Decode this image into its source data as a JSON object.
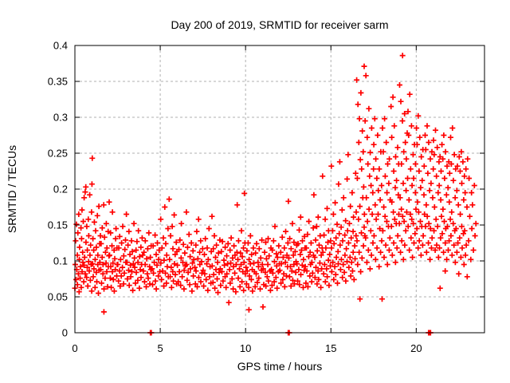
{
  "chart_data": {
    "type": "scatter",
    "title": "Day 200 of 2019, SRMTID for receiver sarm",
    "xlabel": "GPS time / hours",
    "ylabel": "SRMTID / TECUs",
    "xlim": [
      0,
      24
    ],
    "ylim": [
      0,
      0.4
    ],
    "xticks": [
      0,
      5,
      10,
      15,
      20
    ],
    "yticks": [
      0,
      0.05,
      0.1,
      0.15,
      0.2,
      0.25,
      0.3,
      0.35,
      0.4
    ],
    "grid": true,
    "legend": "none",
    "marker": "plus",
    "marker_color": "#ff0000",
    "grid_color": "#b0b0b0",
    "axis_color": "#000000",
    "background_color": "#ffffff",
    "bin_width": 0.5,
    "bins": [
      {
        "x0": 0.0,
        "ys": [
          0.062,
          0.095,
          0.128,
          0.074,
          0.151,
          0.088,
          0.108,
          0.067,
          0.139,
          0.082,
          0.165,
          0.057,
          0.102,
          0.119,
          0.076,
          0.092,
          0.146,
          0.063,
          0.131,
          0.171,
          0.085,
          0.112,
          0.098,
          0.155
        ]
      },
      {
        "x0": 0.5,
        "ys": [
          0.071,
          0.094,
          0.188,
          0.105,
          0.196,
          0.082,
          0.203,
          0.126,
          0.077,
          0.148,
          0.091,
          0.115,
          0.065,
          0.158,
          0.099,
          0.135,
          0.086,
          0.192,
          0.108,
          0.073,
          0.122,
          0.095,
          0.168,
          0.058
        ]
      },
      {
        "x0": 1.0,
        "ys": [
          0.207,
          0.096,
          0.131,
          0.078,
          0.115,
          0.089,
          0.154,
          0.063,
          0.102,
          0.142,
          0.084,
          0.119,
          0.071,
          0.163,
          0.095,
          0.108,
          0.055,
          0.176,
          0.087,
          0.124,
          0.098,
          0.135
        ]
      },
      {
        "x0": 1.5,
        "ys": [
          0.088,
          0.124,
          0.069,
          0.105,
          0.146,
          0.082,
          0.095,
          0.178,
          0.061,
          0.133,
          0.076,
          0.112,
          0.097,
          0.152,
          0.085,
          0.118,
          0.064,
          0.141,
          0.092,
          0.107
        ]
      },
      {
        "x0": 2.0,
        "ys": [
          0.182,
          0.108,
          0.076,
          0.139,
          0.092,
          0.063,
          0.121,
          0.085,
          0.168,
          0.097,
          0.074,
          0.115,
          0.058,
          0.103,
          0.088,
          0.131,
          0.145,
          0.079,
          0.118,
          0.095
        ]
      },
      {
        "x0": 2.5,
        "ys": [
          0.095,
          0.072,
          0.118,
          0.086,
          0.134,
          0.065,
          0.102,
          0.079,
          0.125,
          0.091,
          0.148,
          0.068,
          0.107,
          0.083,
          0.116,
          0.129,
          0.098
        ]
      },
      {
        "x0": 3.0,
        "ys": [
          0.165,
          0.098,
          0.075,
          0.122,
          0.087,
          0.141,
          0.066,
          0.109,
          0.094,
          0.078,
          0.128,
          0.085,
          0.113,
          0.059,
          0.096,
          0.152,
          0.104
        ]
      },
      {
        "x0": 3.5,
        "ys": [
          0.091,
          0.069,
          0.115,
          0.084,
          0.127,
          0.073,
          0.098,
          0.142,
          0.062,
          0.106,
          0.088,
          0.119,
          0.077,
          0.095,
          0.132,
          0.108
        ]
      },
      {
        "x0": 4.0,
        "ys": [
          0.086,
          0.112,
          0.071,
          0.095,
          0.128,
          0.064,
          0.103,
          0.082,
          0.117,
          0.076,
          0.139,
          0.092,
          0.068,
          0.105,
          0.088,
          0.121
        ]
      },
      {
        "x0": 4.5,
        "ys": [
          0.089,
          0.067,
          0.121,
          0.083,
          0.098,
          0.136,
          0.072,
          0.109,
          0.061,
          0.094,
          0.125,
          0.079,
          0.102,
          0.115,
          0.085
        ]
      },
      {
        "x0": 5.0,
        "ys": [
          0.158,
          0.097,
          0.074,
          0.118,
          0.086,
          0.132,
          0.065,
          0.101,
          0.175,
          0.083,
          0.124,
          0.069,
          0.108,
          0.092,
          0.145,
          0.078
        ]
      },
      {
        "x0": 5.5,
        "ys": [
          0.186,
          0.102,
          0.078,
          0.135,
          0.091,
          0.063,
          0.148,
          0.085,
          0.117,
          0.072,
          0.164,
          0.096,
          0.109,
          0.081,
          0.126,
          0.068,
          0.113
        ]
      },
      {
        "x0": 6.0,
        "ys": [
          0.094,
          0.071,
          0.116,
          0.085,
          0.129,
          0.066,
          0.104,
          0.152,
          0.078,
          0.098,
          0.123,
          0.061,
          0.087,
          0.111,
          0.093
        ]
      },
      {
        "x0": 6.5,
        "ys": [
          0.168,
          0.095,
          0.073,
          0.119,
          0.084,
          0.137,
          0.067,
          0.106,
          0.089,
          0.125,
          0.058,
          0.097,
          0.114,
          0.079,
          0.102
        ]
      },
      {
        "x0": 7.0,
        "ys": [
          0.091,
          0.068,
          0.122,
          0.086,
          0.141,
          0.064,
          0.103,
          0.158,
          0.077,
          0.112,
          0.095,
          0.128,
          0.071,
          0.099,
          0.083,
          0.117
        ]
      },
      {
        "x0": 7.5,
        "ys": [
          0.087,
          0.065,
          0.109,
          0.082,
          0.131,
          0.074,
          0.096,
          0.118,
          0.059,
          0.102,
          0.145,
          0.078,
          0.092,
          0.069,
          0.113
        ]
      },
      {
        "x0": 8.0,
        "ys": [
          0.162,
          0.093,
          0.07,
          0.117,
          0.081,
          0.135,
          0.062,
          0.105,
          0.088,
          0.122,
          0.075,
          0.098,
          0.056,
          0.111,
          0.084,
          0.129
        ]
      },
      {
        "x0": 8.5,
        "ys": [
          0.089,
          0.066,
          0.113,
          0.085,
          0.127,
          0.072,
          0.101,
          0.094,
          0.078,
          0.119,
          0.063,
          0.107,
          0.082,
          0.096,
          0.124
        ]
      },
      {
        "x0": 9.0,
        "ys": [
          0.042,
          0.088,
          0.115,
          0.069,
          0.097,
          0.132,
          0.075,
          0.104,
          0.061,
          0.092,
          0.121,
          0.083,
          0.108,
          0.057,
          0.095,
          0.112
        ]
      },
      {
        "x0": 9.5,
        "ys": [
          0.178,
          0.102,
          0.076,
          0.128,
          0.089,
          0.064,
          0.111,
          0.095,
          0.142,
          0.071,
          0.106,
          0.085,
          0.118,
          0.059,
          0.098,
          0.125,
          0.082
        ]
      },
      {
        "x0": 10.0,
        "ys": [
          0.091,
          0.068,
          0.114,
          0.086,
          0.125,
          0.063,
          0.102,
          0.079,
          0.096,
          0.135,
          0.074,
          0.109,
          0.088,
          0.058,
          0.118,
          0.097
        ]
      },
      {
        "x0": 10.5,
        "ys": [
          0.085,
          0.064,
          0.111,
          0.082,
          0.124,
          0.07,
          0.098,
          0.092,
          0.076,
          0.117,
          0.061,
          0.104,
          0.087,
          0.129,
          0.095
        ]
      },
      {
        "x0": 11.0,
        "ys": [
          0.036,
          0.089,
          0.067,
          0.112,
          0.084,
          0.126,
          0.065,
          0.103,
          0.078,
          0.095,
          0.131,
          0.072,
          0.107,
          0.086,
          0.059,
          0.118
        ]
      },
      {
        "x0": 11.5,
        "ys": [
          0.088,
          0.066,
          0.115,
          0.083,
          0.128,
          0.071,
          0.099,
          0.148,
          0.077,
          0.11,
          0.093,
          0.062,
          0.105,
          0.085,
          0.121,
          0.096
        ]
      },
      {
        "x0": 12.0,
        "ys": [
          0.087,
          0.112,
          0.069,
          0.096,
          0.133,
          0.074,
          0.105,
          0.082,
          0.118,
          0.064,
          0.098,
          0.141,
          0.079,
          0.108,
          0.092,
          0.125
        ]
      },
      {
        "x0": 12.5,
        "ys": [
          0.183,
          0.104,
          0.078,
          0.131,
          0.092,
          0.065,
          0.117,
          0.086,
          0.152,
          0.073,
          0.108,
          0.095,
          0.126,
          0.068,
          0.113,
          0.084,
          0.099,
          0.122
        ]
      },
      {
        "x0": 13.0,
        "ys": [
          0.096,
          0.072,
          0.124,
          0.088,
          0.143,
          0.067,
          0.109,
          0.161,
          0.081,
          0.115,
          0.094,
          0.128,
          0.063,
          0.102,
          0.087,
          0.134,
          0.118
        ]
      },
      {
        "x0": 13.5,
        "ys": [
          0.092,
          0.069,
          0.118,
          0.086,
          0.137,
          0.064,
          0.106,
          0.155,
          0.079,
          0.112,
          0.095,
          0.125,
          0.071,
          0.098,
          0.083,
          0.146,
          0.108
        ]
      },
      {
        "x0": 14.0,
        "ys": [
          0.192,
          0.105,
          0.077,
          0.129,
          0.091,
          0.148,
          0.068,
          0.114,
          0.086,
          0.161,
          0.074,
          0.122,
          0.097,
          0.135,
          0.063,
          0.108,
          0.089,
          0.118
        ]
      },
      {
        "x0": 14.5,
        "ys": [
          0.218,
          0.112,
          0.082,
          0.136,
          0.095,
          0.158,
          0.071,
          0.118,
          0.089,
          0.173,
          0.078,
          0.126,
          0.101,
          0.142,
          0.066,
          0.109,
          0.093,
          0.128
        ]
      },
      {
        "x0": 15.0,
        "ys": [
          0.232,
          0.118,
          0.085,
          0.142,
          0.098,
          0.165,
          0.074,
          0.124,
          0.092,
          0.181,
          0.081,
          0.132,
          0.105,
          0.151,
          0.069,
          0.113,
          0.096,
          0.207,
          0.138
        ]
      },
      {
        "x0": 15.5,
        "ys": [
          0.238,
          0.122,
          0.088,
          0.147,
          0.102,
          0.171,
          0.077,
          0.128,
          0.095,
          0.188,
          0.084,
          0.136,
          0.108,
          0.156,
          0.072,
          0.117,
          0.099,
          0.214,
          0.142
        ]
      },
      {
        "x0": 16.0,
        "ys": [
          0.248,
          0.125,
          0.091,
          0.152,
          0.105,
          0.176,
          0.079,
          0.132,
          0.098,
          0.195,
          0.086,
          0.141,
          0.112,
          0.161,
          0.074,
          0.121,
          0.103,
          0.222,
          0.135,
          0.168
        ]
      },
      {
        "x0": 16.5,
        "ys": [
          0.352,
          0.128,
          0.215,
          0.095,
          0.318,
          0.158,
          0.265,
          0.112,
          0.298,
          0.176,
          0.241,
          0.085,
          0.334,
          0.139,
          0.228,
          0.104,
          0.281,
          0.188,
          0.252,
          0.121,
          0.203,
          0.147,
          0.165,
          0.135
        ]
      },
      {
        "x0": 17.0,
        "ys": [
          0.295,
          0.132,
          0.358,
          0.188,
          0.098,
          0.272,
          0.155,
          0.235,
          0.115,
          0.312,
          0.172,
          0.218,
          0.089,
          0.251,
          0.142,
          0.205,
          0.108,
          0.285,
          0.165,
          0.195,
          0.125,
          0.228
        ]
      },
      {
        "x0": 17.5,
        "ys": [
          0.262,
          0.135,
          0.298,
          0.178,
          0.102,
          0.242,
          0.158,
          0.215,
          0.118,
          0.275,
          0.165,
          0.198,
          0.092,
          0.228,
          0.145,
          0.185,
          0.112,
          0.252,
          0.205,
          0.128
        ]
      },
      {
        "x0": 18.0,
        "ys": [
          0.285,
          0.142,
          0.252,
          0.175,
          0.105,
          0.298,
          0.162,
          0.218,
          0.122,
          0.265,
          0.155,
          0.195,
          0.095,
          0.235,
          0.148,
          0.208,
          0.115,
          0.242,
          0.132,
          0.185
        ]
      },
      {
        "x0": 18.5,
        "ys": [
          0.315,
          0.148,
          0.272,
          0.182,
          0.108,
          0.328,
          0.168,
          0.225,
          0.125,
          0.288,
          0.158,
          0.202,
          0.098,
          0.245,
          0.152,
          0.212,
          0.118,
          0.258,
          0.135,
          0.192,
          0.235,
          0.165
        ]
      },
      {
        "x0": 19.0,
        "ys": [
          0.152,
          0.345,
          0.188,
          0.112,
          0.322,
          0.172,
          0.235,
          0.128,
          0.295,
          0.162,
          0.208,
          0.102,
          0.252,
          0.155,
          0.305,
          0.122,
          0.265,
          0.142,
          0.198,
          0.242,
          0.168,
          0.278,
          0.215
        ]
      },
      {
        "x0": 19.5,
        "ys": [
          0.308,
          0.148,
          0.275,
          0.185,
          0.115,
          0.332,
          0.165,
          0.228,
          0.132,
          0.288,
          0.158,
          0.205,
          0.105,
          0.248,
          0.152,
          0.215,
          0.125,
          0.262,
          0.138,
          0.195,
          0.235,
          0.172
        ]
      },
      {
        "x0": 20.0,
        "ys": [
          0.285,
          0.145,
          0.262,
          0.182,
          0.118,
          0.302,
          0.168,
          0.225,
          0.128,
          0.272,
          0.155,
          0.202,
          0.108,
          0.245,
          0.148,
          0.212,
          0.122,
          0.255,
          0.135,
          0.192,
          0.232,
          0.165
        ]
      },
      {
        "x0": 20.5,
        "ys": [
          0.275,
          0.148,
          0.255,
          0.178,
          0.112,
          0.288,
          0.162,
          0.222,
          0.125,
          0.265,
          0.152,
          0.198,
          0.102,
          0.242,
          0.145,
          0.208,
          0.118,
          0.252,
          0.132,
          0.188,
          0.228
        ]
      },
      {
        "x0": 21.0,
        "ys": [
          0.268,
          0.142,
          0.248,
          0.175,
          0.115,
          0.282,
          0.158,
          0.218,
          0.122,
          0.258,
          0.148,
          0.195,
          0.105,
          0.238,
          0.205,
          0.118,
          0.245,
          0.132,
          0.185,
          0.225,
          0.162
        ]
      },
      {
        "x0": 21.5,
        "ys": [
          0.262,
          0.138,
          0.242,
          0.172,
          0.112,
          0.275,
          0.155,
          0.215,
          0.125,
          0.252,
          0.145,
          0.192,
          0.102,
          0.232,
          0.148,
          0.202,
          0.115,
          0.238,
          0.128,
          0.182,
          0.222,
          0.158
        ]
      },
      {
        "x0": 22.0,
        "ys": [
          0.272,
          0.135,
          0.235,
          0.168,
          0.108,
          0.285,
          0.152,
          0.212,
          0.122,
          0.248,
          0.142,
          0.188,
          0.098,
          0.228,
          0.145,
          0.198,
          0.112,
          0.232,
          0.125,
          0.178,
          0.082
        ]
      },
      {
        "x0": 22.5,
        "ys": [
          0.245,
          0.132,
          0.225,
          0.165,
          0.105,
          0.252,
          0.148,
          0.208,
          0.118,
          0.238,
          0.138,
          0.185,
          0.095,
          0.218,
          0.142,
          0.195,
          0.108,
          0.228,
          0.122,
          0.175,
          0.078
        ]
      },
      {
        "x0": 23.0,
        "ys": [
          0.242,
          0.128,
          0.215,
          0.162,
          0.102,
          0.195,
          0.145,
          0.178,
          0.115,
          0.205,
          0.135,
          0.152
        ]
      }
    ],
    "outlier_points": [
      [
        1.02,
        0.243
      ],
      [
        1.7,
        0.029
      ],
      [
        4.42,
        0.0
      ],
      [
        4.48,
        0.0
      ],
      [
        9.93,
        0.194
      ],
      [
        10.2,
        0.032
      ],
      [
        12.5,
        0.0
      ],
      [
        12.56,
        0.0
      ],
      [
        16.7,
        0.047
      ],
      [
        16.95,
        0.371
      ],
      [
        18.0,
        0.047
      ],
      [
        19.2,
        0.386
      ],
      [
        20.72,
        0.0
      ],
      [
        20.78,
        0.0
      ],
      [
        20.84,
        0.0
      ],
      [
        21.4,
        0.062
      ],
      [
        21.7,
        0.086
      ]
    ]
  }
}
